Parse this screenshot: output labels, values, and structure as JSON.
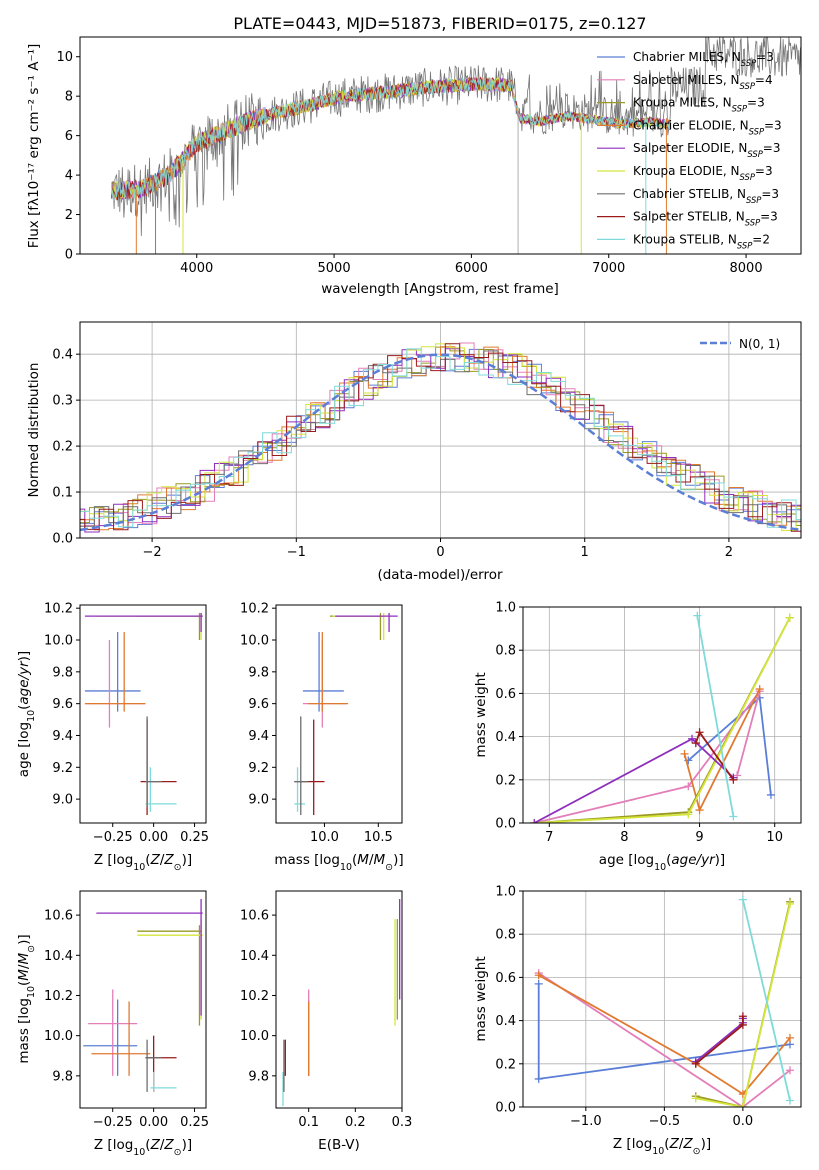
{
  "figure": {
    "title": "PLATE=0443, MJD=51873, FIBERID=0175, z=0.127"
  },
  "colors": {
    "blue": "#5b7fd6",
    "pink": "#e37eb9",
    "olive": "#9a9a22",
    "orange": "#e07a30",
    "purple": "#8f2ebd",
    "yellow": "#d4e63c",
    "gray": "#6e6e6e",
    "darkred": "#9b1a1a",
    "cyan": "#7fdada"
  },
  "chart_data": [
    {
      "id": "spectrum",
      "type": "line",
      "title": "PLATE=0443, MJD=51873, FIBERID=0175, z=0.127",
      "xlabel": "wavelength [Angstrom, rest frame]",
      "ylabel": "Flux [fλ10⁻¹⁷ erg cm⁻² s⁻¹ A⁻¹]",
      "xlim": [
        3150,
        8400
      ],
      "ylim": [
        0,
        11
      ],
      "xticks": [
        "4000",
        "5000",
        "6000",
        "7000",
        "8000"
      ],
      "yticks": [
        "0",
        "2",
        "4",
        "6",
        "8",
        "10"
      ],
      "legend_position": "top-right",
      "grid": false,
      "continuum_knots": {
        "x": [
          3400,
          3600,
          3800,
          4000,
          4200,
          4400,
          4600,
          4800,
          5000,
          5200,
          5400,
          5600,
          5800,
          6000,
          6200,
          6300,
          6350,
          6500,
          6700,
          6900,
          7100,
          7300,
          7500,
          7700,
          7900,
          8100,
          8300
        ],
        "y": [
          3.2,
          3.3,
          4.0,
          5.6,
          6.2,
          6.8,
          7.2,
          7.5,
          7.9,
          8.1,
          8.2,
          8.4,
          8.5,
          8.6,
          8.6,
          8.5,
          7.2,
          7.0,
          7.3,
          7.1,
          6.9,
          7.0,
          6.8,
          6.9,
          6.7,
          6.6,
          6.5
        ]
      },
      "series": [
        {
          "name": "Chabrier MILES, N_SSP=3",
          "color": "#5b7fd6",
          "xmax": 7450
        },
        {
          "name": "Salpeter MILES, N_SSP=4",
          "color": "#e37eb9",
          "xmax": 7450
        },
        {
          "name": "Kroupa MILES, N_SSP=3",
          "color": "#9a9a22",
          "xmax": 7450
        },
        {
          "name": "Chabrier ELODIE, N_SSP=3",
          "color": "#e07a30",
          "xmax": 7450
        },
        {
          "name": "Salpeter ELODIE, N_SSP=3",
          "color": "#8f2ebd",
          "xmax": 7450
        },
        {
          "name": "Kroupa ELODIE, N_SSP=3",
          "color": "#d4e63c",
          "xmax": 7450
        },
        {
          "name": "Chabrier STELIB, N_SSP=3",
          "color": "#6e6e6e",
          "xmax": 8400
        },
        {
          "name": "Salpeter STELIB, N_SSP=3",
          "color": "#9b1a1a",
          "xmax": 7450
        },
        {
          "name": "Kroupa STELIB, N_SSP=2",
          "color": "#7fdada",
          "xmax": 7450
        }
      ],
      "legend_labels": [
        {
          "prefix": "Chabrier MILES, N",
          "sub": "SSP",
          "suffix": "=3"
        },
        {
          "prefix": "Salpeter MILES, N",
          "sub": "SSP",
          "suffix": "=4"
        },
        {
          "prefix": "Kroupa MILES, N",
          "sub": "SSP",
          "suffix": "=3"
        },
        {
          "prefix": "Chabrier ELODIE, N",
          "sub": "SSP",
          "suffix": "=3"
        },
        {
          "prefix": "Salpeter ELODIE, N",
          "sub": "SSP",
          "suffix": "=3"
        },
        {
          "prefix": "Kroupa ELODIE, N",
          "sub": "SSP",
          "suffix": "=3"
        },
        {
          "prefix": "Chabrier STELIB, N",
          "sub": "SSP",
          "suffix": "=3"
        },
        {
          "prefix": "Salpeter STELIB, N",
          "sub": "SSP",
          "suffix": "=3"
        },
        {
          "prefix": "Kroupa STELIB, N",
          "sub": "SSP",
          "suffix": "=2"
        }
      ]
    },
    {
      "id": "residuals",
      "type": "line",
      "xlabel": "(data-model)/error",
      "ylabel": "Normed distribution",
      "xlim": [
        -2.5,
        2.5
      ],
      "ylim": [
        0,
        0.47
      ],
      "xticks": [
        "−2",
        "−1",
        "0",
        "1",
        "2"
      ],
      "xtick_values": [
        -2,
        -1,
        0,
        1,
        2
      ],
      "yticks": [
        "0.0",
        "0.1",
        "0.2",
        "0.3",
        "0.4"
      ],
      "ytick_values": [
        0,
        0.1,
        0.2,
        0.3,
        0.4
      ],
      "grid": true,
      "legend_position": "top-right",
      "gaussian_label": "N(0, 1)",
      "gaussian_color": "#5b7fd6",
      "hist_bin_width": 0.1,
      "hist_mean": 0.1,
      "hist_sigma": 1.05,
      "hist_peak": 0.38
    },
    {
      "id": "age_vs_Z",
      "type": "scatter",
      "xlabel": "Z [log10(Z/Z⊙)]",
      "ylabel": "age [log10(age/yr)]",
      "xlim": [
        -0.45,
        0.32
      ],
      "ylim": [
        8.85,
        10.22
      ],
      "xticks": [
        "−0.25",
        "0.00",
        "0.25"
      ],
      "xtick_values": [
        -0.25,
        0,
        0.25
      ],
      "yticks": [
        "9.0",
        "9.2",
        "9.4",
        "9.6",
        "9.8",
        "10.0",
        "10.2"
      ],
      "ytick_values": [
        9.0,
        9.2,
        9.4,
        9.6,
        9.8,
        10.0,
        10.2
      ],
      "points": [
        {
          "x": -0.22,
          "xlo": -0.42,
          "xhi": -0.08,
          "y": 9.68,
          "ylo": 9.55,
          "yhi": 10.05,
          "color": "#5b7fd6"
        },
        {
          "x": -0.27,
          "xlo": -0.42,
          "xhi": -0.05,
          "y": 9.6,
          "ylo": 9.45,
          "yhi": 10.0,
          "color": "#e37eb9"
        },
        {
          "x": -0.18,
          "xlo": -0.42,
          "xhi": -0.05,
          "y": 9.6,
          "ylo": 9.55,
          "yhi": 10.05,
          "color": "#e07a30"
        },
        {
          "x": 0.28,
          "xlo": -0.1,
          "xhi": 0.29,
          "y": 10.15,
          "ylo": 10.0,
          "yhi": 10.17,
          "color": "#9a9a22"
        },
        {
          "x": 0.29,
          "xlo": -0.35,
          "xhi": 0.3,
          "y": 10.15,
          "ylo": 10.0,
          "yhi": 10.17,
          "color": "#d4e63c"
        },
        {
          "x": 0.29,
          "xlo": -0.42,
          "xhi": 0.3,
          "y": 10.15,
          "ylo": 10.05,
          "yhi": 10.17,
          "color": "#8f2ebd"
        },
        {
          "x": -0.04,
          "xlo": -0.08,
          "xhi": 0.14,
          "y": 9.11,
          "ylo": 8.9,
          "yhi": 9.5,
          "color": "#9b1a1a"
        },
        {
          "x": -0.02,
          "xlo": -0.05,
          "xhi": 0.14,
          "y": 8.97,
          "ylo": 8.92,
          "yhi": 9.2,
          "color": "#7fdada"
        },
        {
          "x": -0.04,
          "xlo": -0.05,
          "xhi": 0.05,
          "y": 9.11,
          "ylo": 8.95,
          "yhi": 9.52,
          "color": "#6e6e6e"
        }
      ]
    },
    {
      "id": "age_vs_mass",
      "type": "scatter",
      "xlabel": "mass [log10(M/M⊙)]",
      "ylabel": "",
      "xlim": [
        9.55,
        10.72
      ],
      "ylim": [
        8.85,
        10.22
      ],
      "xticks": [
        "10.0",
        "10.5"
      ],
      "xtick_values": [
        10.0,
        10.5
      ],
      "yticks": [
        "9.0",
        "9.2",
        "9.4",
        "9.6",
        "9.8",
        "10.0",
        "10.2"
      ],
      "ytick_values": [
        9.0,
        9.2,
        9.4,
        9.6,
        9.8,
        10.0,
        10.2
      ],
      "points": [
        {
          "x": 9.95,
          "xlo": 9.8,
          "xhi": 10.18,
          "y": 9.68,
          "ylo": 9.55,
          "yhi": 10.05,
          "color": "#5b7fd6"
        },
        {
          "x": 9.98,
          "xlo": 9.8,
          "xhi": 10.2,
          "y": 9.6,
          "ylo": 9.45,
          "yhi": 10.0,
          "color": "#e37eb9"
        },
        {
          "x": 9.98,
          "xlo": 9.85,
          "xhi": 10.22,
          "y": 9.6,
          "ylo": 9.55,
          "yhi": 10.05,
          "color": "#e07a30"
        },
        {
          "x": 10.52,
          "xlo": 10.05,
          "xhi": 10.55,
          "y": 10.15,
          "ylo": 10.0,
          "yhi": 10.17,
          "color": "#9a9a22"
        },
        {
          "x": 10.55,
          "xlo": 10.08,
          "xhi": 10.56,
          "y": 10.15,
          "ylo": 10.0,
          "yhi": 10.17,
          "color": "#d4e63c"
        },
        {
          "x": 10.6,
          "xlo": 10.1,
          "xhi": 10.68,
          "y": 10.15,
          "ylo": 10.05,
          "yhi": 10.17,
          "color": "#8f2ebd"
        },
        {
          "x": 9.9,
          "xlo": 9.72,
          "xhi": 10.0,
          "y": 9.11,
          "ylo": 8.9,
          "yhi": 9.5,
          "color": "#9b1a1a"
        },
        {
          "x": 9.75,
          "xlo": 9.72,
          "xhi": 9.82,
          "y": 8.97,
          "ylo": 8.92,
          "yhi": 9.2,
          "color": "#7fdada"
        },
        {
          "x": 9.78,
          "xlo": 9.72,
          "xhi": 9.85,
          "y": 9.11,
          "ylo": 8.9,
          "yhi": 9.52,
          "color": "#6e6e6e"
        }
      ]
    },
    {
      "id": "massweight_vs_age",
      "type": "line",
      "xlabel": "age [log10(age/yr)]",
      "ylabel": "mass weight",
      "xlim": [
        6.65,
        10.35
      ],
      "ylim": [
        0,
        1.0
      ],
      "xticks": [
        "7",
        "8",
        "9",
        "10"
      ],
      "xtick_values": [
        7,
        8,
        9,
        10
      ],
      "yticks": [
        "0.0",
        "0.2",
        "0.4",
        "0.6",
        "0.8",
        "1.0"
      ],
      "ytick_values": [
        0,
        0.2,
        0.4,
        0.6,
        0.8,
        1.0
      ],
      "grid": true,
      "series": [
        {
          "color": "#5b7fd6",
          "x": [
            8.85,
            9.8,
            9.95
          ],
          "y": [
            0.29,
            0.58,
            0.13
          ]
        },
        {
          "color": "#e37eb9",
          "x": [
            6.8,
            8.85,
            9.8,
            9.5
          ],
          "y": [
            0.0,
            0.17,
            0.61,
            0.22
          ]
        },
        {
          "color": "#e07a30",
          "x": [
            8.8,
            9.0,
            9.8
          ],
          "y": [
            0.32,
            0.06,
            0.62
          ]
        },
        {
          "color": "#9a9a22",
          "x": [
            6.8,
            8.85,
            10.2
          ],
          "y": [
            0.0,
            0.05,
            0.95
          ]
        },
        {
          "color": "#d4e63c",
          "x": [
            6.8,
            8.85,
            10.2
          ],
          "y": [
            0.0,
            0.04,
            0.95
          ]
        },
        {
          "color": "#8f2ebd",
          "x": [
            6.8,
            8.9,
            9.45
          ],
          "y": [
            0.0,
            0.39,
            0.21
          ]
        },
        {
          "color": "#9b1a1a",
          "x": [
            8.95,
            9.0,
            9.45
          ],
          "y": [
            0.37,
            0.42,
            0.2
          ]
        },
        {
          "color": "#7fdada",
          "x": [
            8.97,
            9.45
          ],
          "y": [
            0.96,
            0.03
          ]
        }
      ]
    },
    {
      "id": "mass_vs_Z",
      "type": "scatter",
      "xlabel": "Z [log10(Z/Z⊙)]",
      "ylabel": "mass [log10(M/M⊙)]",
      "xlim": [
        -0.45,
        0.32
      ],
      "ylim": [
        9.64,
        10.72
      ],
      "xticks": [
        "−0.25",
        "0.00",
        "0.25"
      ],
      "xtick_values": [
        -0.25,
        0,
        0.25
      ],
      "yticks": [
        "9.8",
        "10.0",
        "10.2",
        "10.4",
        "10.6"
      ],
      "ytick_values": [
        9.8,
        10.0,
        10.2,
        10.4,
        10.6
      ],
      "points": [
        {
          "x": -0.22,
          "xlo": -0.43,
          "xhi": -0.1,
          "y": 9.95,
          "ylo": 9.8,
          "yhi": 10.18,
          "color": "#5b7fd6"
        },
        {
          "x": -0.25,
          "xlo": -0.4,
          "xhi": -0.1,
          "y": 10.06,
          "ylo": 9.8,
          "yhi": 10.23,
          "color": "#e37eb9"
        },
        {
          "x": -0.15,
          "xlo": -0.38,
          "xhi": -0.02,
          "y": 9.91,
          "ylo": 9.8,
          "yhi": 10.17,
          "color": "#e07a30"
        },
        {
          "x": 0.28,
          "xlo": -0.1,
          "xhi": 0.29,
          "y": 10.52,
          "ylo": 10.05,
          "yhi": 10.55,
          "color": "#9a9a22"
        },
        {
          "x": 0.29,
          "xlo": -0.1,
          "xhi": 0.3,
          "y": 10.5,
          "ylo": 10.08,
          "yhi": 10.58,
          "color": "#d4e63c"
        },
        {
          "x": 0.29,
          "xlo": -0.35,
          "xhi": 0.3,
          "y": 10.61,
          "ylo": 10.1,
          "yhi": 10.68,
          "color": "#8f2ebd"
        },
        {
          "x": 0.0,
          "xlo": -0.05,
          "xhi": 0.14,
          "y": 9.89,
          "ylo": 9.72,
          "yhi": 10.0,
          "color": "#9b1a1a"
        },
        {
          "x": 0.0,
          "xlo": -0.02,
          "xhi": 0.14,
          "y": 9.74,
          "ylo": 9.72,
          "yhi": 9.82,
          "color": "#7fdada"
        },
        {
          "x": -0.04,
          "xlo": -0.05,
          "xhi": 0.05,
          "y": 9.89,
          "ylo": 9.72,
          "yhi": 9.98,
          "color": "#6e6e6e"
        }
      ]
    },
    {
      "id": "mass_vs_ebv",
      "type": "scatter",
      "xlabel": "E(B-V)",
      "ylabel": "",
      "xlim": [
        0.03,
        0.3
      ],
      "ylim": [
        9.64,
        10.72
      ],
      "xticks": [
        "0.1",
        "0.2",
        "0.3"
      ],
      "xtick_values": [
        0.1,
        0.2,
        0.3
      ],
      "yticks": [
        "9.8",
        "10.0",
        "10.2",
        "10.4",
        "10.6"
      ],
      "ytick_values": [
        9.8,
        10.0,
        10.2,
        10.4,
        10.6
      ],
      "points": [
        {
          "x": 0.1,
          "y": 9.95,
          "ylo": 9.8,
          "yhi": 10.18,
          "color": "#5b7fd6"
        },
        {
          "x": 0.1,
          "y": 10.06,
          "ylo": 9.8,
          "yhi": 10.23,
          "color": "#e37eb9"
        },
        {
          "x": 0.1,
          "y": 9.91,
          "ylo": 9.8,
          "yhi": 10.17,
          "color": "#e07a30"
        },
        {
          "x": 0.285,
          "y": 10.52,
          "ylo": 10.05,
          "yhi": 10.58,
          "color": "#d4e63c"
        },
        {
          "x": 0.29,
          "y": 10.5,
          "ylo": 10.08,
          "yhi": 10.58,
          "color": "#9a9a22"
        },
        {
          "x": 0.295,
          "y": 10.61,
          "ylo": 10.18,
          "yhi": 10.68,
          "color": "#8f2ebd"
        },
        {
          "x": 0.05,
          "y": 9.89,
          "ylo": 9.8,
          "yhi": 9.98,
          "color": "#9b1a1a"
        },
        {
          "x": 0.045,
          "y": 9.74,
          "ylo": 9.65,
          "yhi": 9.82,
          "color": "#7fdada"
        },
        {
          "x": 0.047,
          "y": 9.8,
          "ylo": 9.72,
          "yhi": 9.98,
          "color": "#6e6e6e"
        }
      ]
    },
    {
      "id": "massweight_vs_Z",
      "type": "line",
      "xlabel": "Z [log10(Z/Z⊙)]",
      "ylabel": "mass weight",
      "xlim": [
        -1.4,
        0.37
      ],
      "ylim": [
        0,
        1.0
      ],
      "xticks": [
        "−1.0",
        "−0.5",
        "0.0"
      ],
      "xtick_values": [
        -1.0,
        -0.5,
        0.0
      ],
      "yticks": [
        "0.0",
        "0.2",
        "0.4",
        "0.6",
        "0.8",
        "1.0"
      ],
      "ytick_values": [
        0,
        0.2,
        0.4,
        0.6,
        0.8,
        1.0
      ],
      "grid": true,
      "series": [
        {
          "color": "#5b7fd6",
          "x": [
            -1.3,
            -1.3,
            0.3
          ],
          "y": [
            0.57,
            0.13,
            0.29
          ]
        },
        {
          "color": "#e37eb9",
          "x": [
            -1.3,
            0.0,
            0.3
          ],
          "y": [
            0.62,
            0.0,
            0.17
          ]
        },
        {
          "color": "#e07a30",
          "x": [
            -1.3,
            -0.3,
            0.0,
            0.3
          ],
          "y": [
            0.61,
            0.2,
            0.06,
            0.32
          ]
        },
        {
          "color": "#9a9a22",
          "x": [
            -0.3,
            0.0,
            0.3
          ],
          "y": [
            0.05,
            0.0,
            0.95
          ]
        },
        {
          "color": "#d4e63c",
          "x": [
            -0.3,
            0.0,
            0.3
          ],
          "y": [
            0.04,
            0.0,
            0.94
          ]
        },
        {
          "color": "#8f2ebd",
          "x": [
            -0.3,
            0.0,
            0.0
          ],
          "y": [
            0.21,
            0.39,
            0.41
          ]
        },
        {
          "color": "#9b1a1a",
          "x": [
            -0.3,
            0.0,
            0.0
          ],
          "y": [
            0.2,
            0.38,
            0.42
          ]
        },
        {
          "color": "#7fdada",
          "x": [
            0.0,
            0.3
          ],
          "y": [
            0.96,
            0.03
          ]
        }
      ]
    }
  ]
}
